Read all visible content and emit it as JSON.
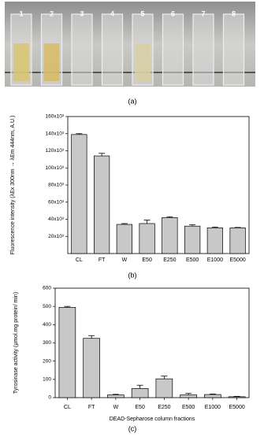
{
  "photo": {
    "tube_labels": [
      "1",
      "2",
      "3",
      "4",
      "5",
      "6",
      "7",
      "8"
    ],
    "caption": "(a)"
  },
  "chart_data": [
    {
      "type": "bar",
      "caption": "(b)",
      "y_label": "Fluorescence intensity (λEx 300nm → λEm 444nm, A.U.)",
      "categories": [
        "CL",
        "FT",
        "W",
        "E50",
        "E250",
        "E500",
        "E1000",
        "E5000"
      ],
      "values": [
        139000,
        114000,
        34000,
        35000,
        42000,
        32000,
        30000,
        30000
      ],
      "errors": [
        1000,
        3000,
        1000,
        4000,
        1000,
        1500,
        1000,
        500
      ],
      "color": "#c8c8c8",
      "ylim": [
        0,
        160000
      ],
      "yticks": [
        {
          "value": 20000,
          "label": "20x10³"
        },
        {
          "value": 40000,
          "label": "40x10³"
        },
        {
          "value": 60000,
          "label": "60x10³"
        },
        {
          "value": 80000,
          "label": "80x10³"
        },
        {
          "value": 100000,
          "label": "100x10³"
        },
        {
          "value": 120000,
          "label": "120x10³"
        },
        {
          "value": 140000,
          "label": "140x10³"
        },
        {
          "value": 160000,
          "label": "160x10³"
        }
      ]
    },
    {
      "type": "bar",
      "caption": "(c)",
      "y_label": "Tyrosinase activity (µmol.mg protein/ min)",
      "x_label": "DEAD-Sepharose column fractions",
      "categories": [
        "CL",
        "FT",
        "W",
        "E50",
        "E250",
        "E500",
        "E1000",
        "E5000"
      ],
      "values": [
        495,
        325,
        15,
        50,
        103,
        15,
        17,
        5
      ],
      "errors": [
        5,
        15,
        3,
        18,
        15,
        8,
        3,
        2
      ],
      "color": "#c8c8c8",
      "ylim": [
        0,
        600
      ],
      "yticks": [
        0,
        100,
        200,
        300,
        400,
        500,
        600
      ]
    }
  ]
}
